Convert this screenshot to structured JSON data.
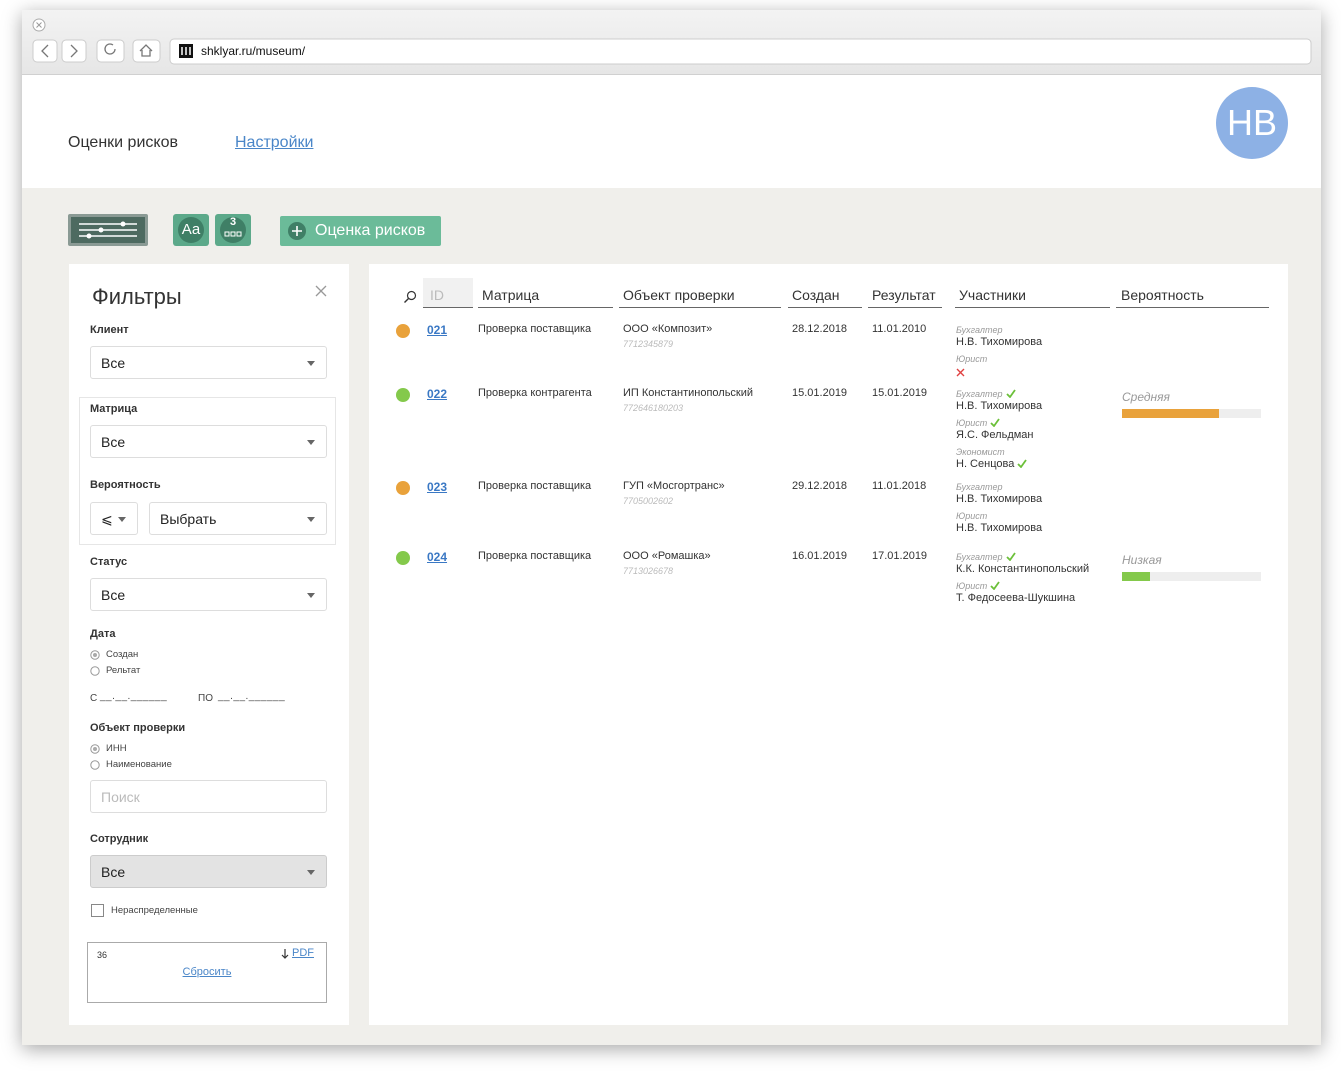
{
  "browser": {
    "url": "shklyar.ru/museum/"
  },
  "header": {
    "nav": [
      "Оценки рисков",
      "Настройки"
    ],
    "avatar": "НВ"
  },
  "toolbar": {
    "text_button": "Аа",
    "number_button": "3",
    "add_button": "Оценка рисков"
  },
  "filters": {
    "title": "Фильтры",
    "client": {
      "label": "Клиент",
      "value": "Все"
    },
    "matrix": {
      "label": "Матрица",
      "value": "Все"
    },
    "probability": {
      "label": "Вероятность",
      "operator": "⩽",
      "value": "Выбрать"
    },
    "status": {
      "label": "Статус",
      "value": "Все"
    },
    "date": {
      "label": "Дата",
      "options": [
        "Создан",
        "Рельтат"
      ],
      "from": "С",
      "to": "ПО",
      "mask": "__.__.______"
    },
    "object": {
      "label": "Объект проверки",
      "options": [
        "ИНН",
        "Наименование"
      ],
      "placeholder": "Поиск"
    },
    "employee": {
      "label": "Сотрудник",
      "value": "Все"
    },
    "unassigned": "Нераспределенные",
    "footer": {
      "count": 36,
      "pdf": "PDF",
      "reset": "Сбросить"
    }
  },
  "table": {
    "columns": [
      "ID",
      "Матрица",
      "Объект проверки",
      "Создан",
      "Результат",
      "Участники",
      "Вероятность"
    ],
    "rows": [
      {
        "color": "#e9a23b",
        "id": "021",
        "matrix": "Проверка поставщика",
        "object": "ООО «Композит»",
        "inn": "7712345879",
        "created": "28.12.2018",
        "result": "11.01.2010",
        "participants": [
          {
            "role": "Бухгалтер",
            "name": "Н.В. Тихомирова"
          },
          {
            "role": "Юрист",
            "rejected": true
          }
        ]
      },
      {
        "color": "#84c94b",
        "id": "022",
        "matrix": "Проверка контрагента",
        "object": "ИП Константинопольский",
        "inn": "772646180203",
        "created": "15.01.2019",
        "result": "15.01.2019",
        "participants": [
          {
            "role": "Бухгалтер",
            "name": "Н.В. Тихомирова",
            "check_after": "role"
          },
          {
            "role": "Юрист",
            "name": "Я.С. Фельдман",
            "check_after": "role"
          },
          {
            "role": "Экономист",
            "name": "Н. Сенцова",
            "check_after": "name"
          }
        ],
        "probability": {
          "label": "Средняя",
          "fill": 70,
          "color": "#e9a23b"
        }
      },
      {
        "color": "#e9a23b",
        "id": "023",
        "matrix": "Проверка поставщика",
        "object": "ГУП «Мосгортранс»",
        "inn": "7705002602",
        "created": "29.12.2018",
        "result": "11.01.2018",
        "participants": [
          {
            "role": "Бухгалтер",
            "name": "Н.В. Тихомирова"
          },
          {
            "role": "Юрист",
            "name": "Н.В. Тихомирова"
          }
        ]
      },
      {
        "color": "#84c94b",
        "id": "024",
        "matrix": "Проверка поставщика",
        "object": "ООО «Ромашка»",
        "inn": "7713026678",
        "created": "16.01.2019",
        "result": "17.01.2019",
        "participants": [
          {
            "role": "Бухгалтер",
            "name": "К.К. Константинопольский",
            "check_after": "role"
          },
          {
            "role": "Юрист",
            "name": "Т. Федосеева-Шукшина",
            "check_after": "role"
          }
        ],
        "probability": {
          "label": "Низкая",
          "fill": 20,
          "color": "#84c94b"
        }
      }
    ]
  }
}
